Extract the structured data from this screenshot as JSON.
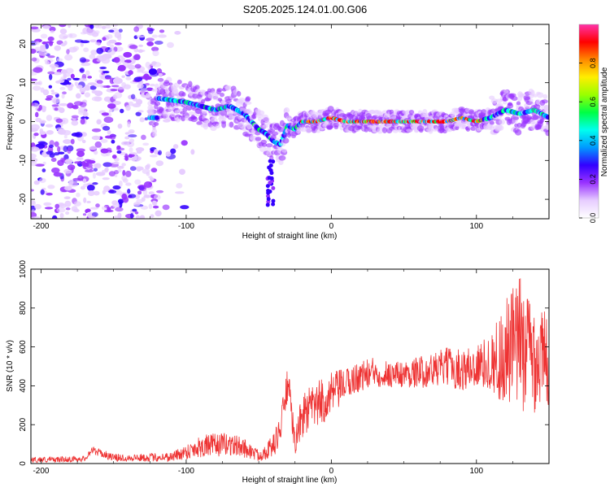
{
  "title": "S205.2025.124.01.00.G06",
  "chart_data": [
    {
      "type": "heatmap",
      "xlabel": "Height of straight line (km)",
      "ylabel": "Frequency (Hz)",
      "xlim": [
        -207,
        150
      ],
      "ylim": [
        -25,
        25
      ],
      "xticks": [
        -200,
        -100,
        0,
        100
      ],
      "yticks": [
        -20,
        -10,
        0,
        10,
        20
      ],
      "colorbar": {
        "label": "Normalized spectral amplitude",
        "range": [
          0,
          1
        ],
        "ticks": [
          0.0,
          0.2,
          0.4,
          0.6,
          0.8
        ],
        "colors": [
          "#ffffff",
          "#e6ccff",
          "#9933ff",
          "#3300ff",
          "#0099ff",
          "#00ffee",
          "#00ff44",
          "#99ff00",
          "#ffee00",
          "#ff8800",
          "#ff0000",
          "#ff33aa"
        ]
      },
      "ridge": {
        "x": [
          -120,
          -100,
          -90,
          -80,
          -70,
          -60,
          -50,
          -45,
          -40,
          -35,
          -30,
          -25,
          -20,
          -10,
          0,
          10,
          20,
          40,
          60,
          80,
          90,
          100,
          110,
          120,
          130,
          140,
          150
        ],
        "frequency": [
          6,
          5,
          4,
          3,
          4,
          2,
          -2,
          -3,
          -5,
          -6,
          -1,
          -2,
          0,
          0,
          1,
          0,
          0,
          0,
          0,
          0,
          1,
          0,
          1,
          3,
          2,
          3,
          1
        ]
      }
    },
    {
      "type": "line",
      "xlabel": "Height of straight line (km)",
      "ylabel": "SNR (10 * v/v)",
      "xlim": [
        -207,
        150
      ],
      "ylim": [
        0,
        1000
      ],
      "xticks": [
        -200,
        -100,
        0,
        100
      ],
      "yticks": [
        0,
        200,
        400,
        600,
        800,
        1000
      ],
      "color": "#ee3333",
      "series": [
        {
          "x": [
            -207,
            -190,
            -170,
            -165,
            -150,
            -130,
            -110,
            -100,
            -90,
            -80,
            -70,
            -60,
            -50,
            -40,
            -35,
            -30,
            -25,
            -20,
            -10,
            0,
            10,
            20,
            30,
            40,
            50,
            60,
            70,
            80,
            90,
            100,
            110,
            120,
            130,
            140,
            150
          ],
          "y": [
            20,
            20,
            25,
            70,
            30,
            30,
            35,
            60,
            90,
            95,
            100,
            80,
            40,
            90,
            180,
            420,
            100,
            250,
            300,
            350,
            410,
            450,
            470,
            460,
            460,
            470,
            480,
            500,
            480,
            500,
            520,
            560,
            620,
            560,
            520
          ],
          "spread": [
            15,
            15,
            15,
            20,
            20,
            20,
            25,
            40,
            60,
            60,
            60,
            50,
            30,
            60,
            80,
            100,
            60,
            120,
            120,
            120,
            80,
            80,
            80,
            70,
            70,
            80,
            90,
            100,
            110,
            120,
            140,
            300,
            350,
            300,
            250
          ]
        }
      ]
    }
  ]
}
